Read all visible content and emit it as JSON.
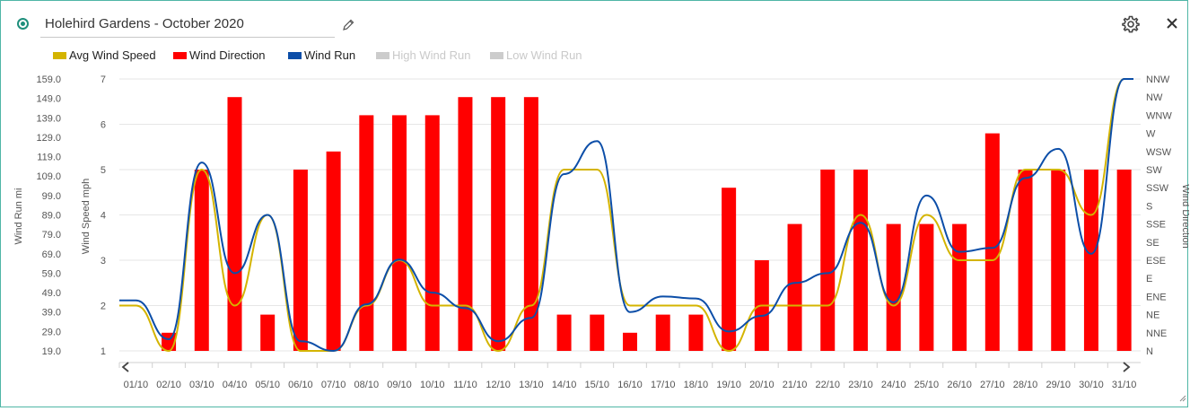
{
  "widget": {
    "title": "Holehird Gardens - October 2020",
    "icons": {
      "status": "radio-selected-icon",
      "edit": "pencil-icon",
      "settings": "gear-icon",
      "close": "close-icon",
      "scroll_left": "chevron-left-icon",
      "scroll_right": "chevron-right-icon",
      "resize": "resize-grip-icon"
    }
  },
  "legend": [
    {
      "label": "Avg Wind Speed",
      "color": "#d4b400",
      "enabled": true
    },
    {
      "label": "Wind Direction",
      "color": "#ff0000",
      "enabled": true
    },
    {
      "label": "Wind Run",
      "color": "#0c4ea8",
      "enabled": true
    },
    {
      "label": "High Wind Run",
      "color": "#cccccc",
      "enabled": false
    },
    {
      "label": "Low Wind Run",
      "color": "#cccccc",
      "enabled": false
    }
  ],
  "chart_data": {
    "type": "bar",
    "categories": [
      "01/10",
      "02/10",
      "03/10",
      "04/10",
      "05/10",
      "06/10",
      "07/10",
      "08/10",
      "09/10",
      "10/10",
      "11/10",
      "12/10",
      "13/10",
      "14/10",
      "15/10",
      "16/10",
      "17/10",
      "18/10",
      "19/10",
      "20/10",
      "21/10",
      "22/10",
      "23/10",
      "24/10",
      "25/10",
      "26/10",
      "27/10",
      "28/10",
      "29/10",
      "30/10",
      "31/10"
    ],
    "axes": {
      "wind_run": {
        "label": "Wind Run mi",
        "ticks": [
          "159.0",
          "149.0",
          "139.0",
          "129.0",
          "119.0",
          "109.0",
          "99.0",
          "89.0",
          "79.0",
          "69.0",
          "59.0",
          "49.0",
          "39.0",
          "29.0",
          "19.0"
        ],
        "range": [
          19,
          159
        ]
      },
      "wind_speed": {
        "label": "Wind Speed mph",
        "ticks": [
          "7",
          "6",
          "5",
          "4",
          "3",
          "2",
          "1"
        ],
        "range": [
          1,
          7
        ]
      },
      "wind_direction": {
        "label": "Wind Direction",
        "ticks": [
          "NNW",
          "NW",
          "WNW",
          "W",
          "WSW",
          "SW",
          "SSW",
          "S",
          "SSE",
          "SE",
          "ESE",
          "E",
          "ENE",
          "NE",
          "NNE",
          "N"
        ]
      }
    },
    "series": [
      {
        "name": "Wind Direction",
        "kind": "bar",
        "color": "#ff0000",
        "axis": "wind_direction",
        "values": [
          null,
          "NNE",
          "SW",
          "NW",
          "NE",
          "SW",
          "WSW",
          "WNW",
          "WNW",
          "WNW",
          "NW",
          "NW",
          "NW",
          "NE",
          "NE",
          "NNE",
          "NE",
          "NE",
          "SSW",
          "ESE",
          "SSE",
          "SW",
          "SW",
          "SSE",
          "SSE",
          "SSE",
          "W",
          "SW",
          "SW",
          "SW",
          "SW"
        ]
      },
      {
        "name": "Avg Wind Speed",
        "kind": "line",
        "color": "#d4b400",
        "axis": "wind_speed",
        "values": [
          2,
          1,
          5,
          2,
          4,
          1,
          1,
          2,
          3,
          2,
          2,
          1,
          2,
          5,
          5,
          2,
          2,
          2,
          1,
          2,
          2,
          2,
          4,
          2,
          4,
          3,
          3,
          5,
          5,
          4,
          7
        ]
      },
      {
        "name": "Wind Run",
        "kind": "line",
        "color": "#0c4ea8",
        "axis": "wind_run",
        "values": [
          45,
          25,
          116,
          59,
          89,
          24,
          19,
          43,
          66,
          49,
          41,
          24,
          36,
          110,
          127,
          39,
          47,
          46,
          29,
          37,
          54,
          59,
          85,
          44,
          99,
          70,
          72,
          108,
          123,
          69,
          159
        ]
      }
    ],
    "grid": true
  }
}
